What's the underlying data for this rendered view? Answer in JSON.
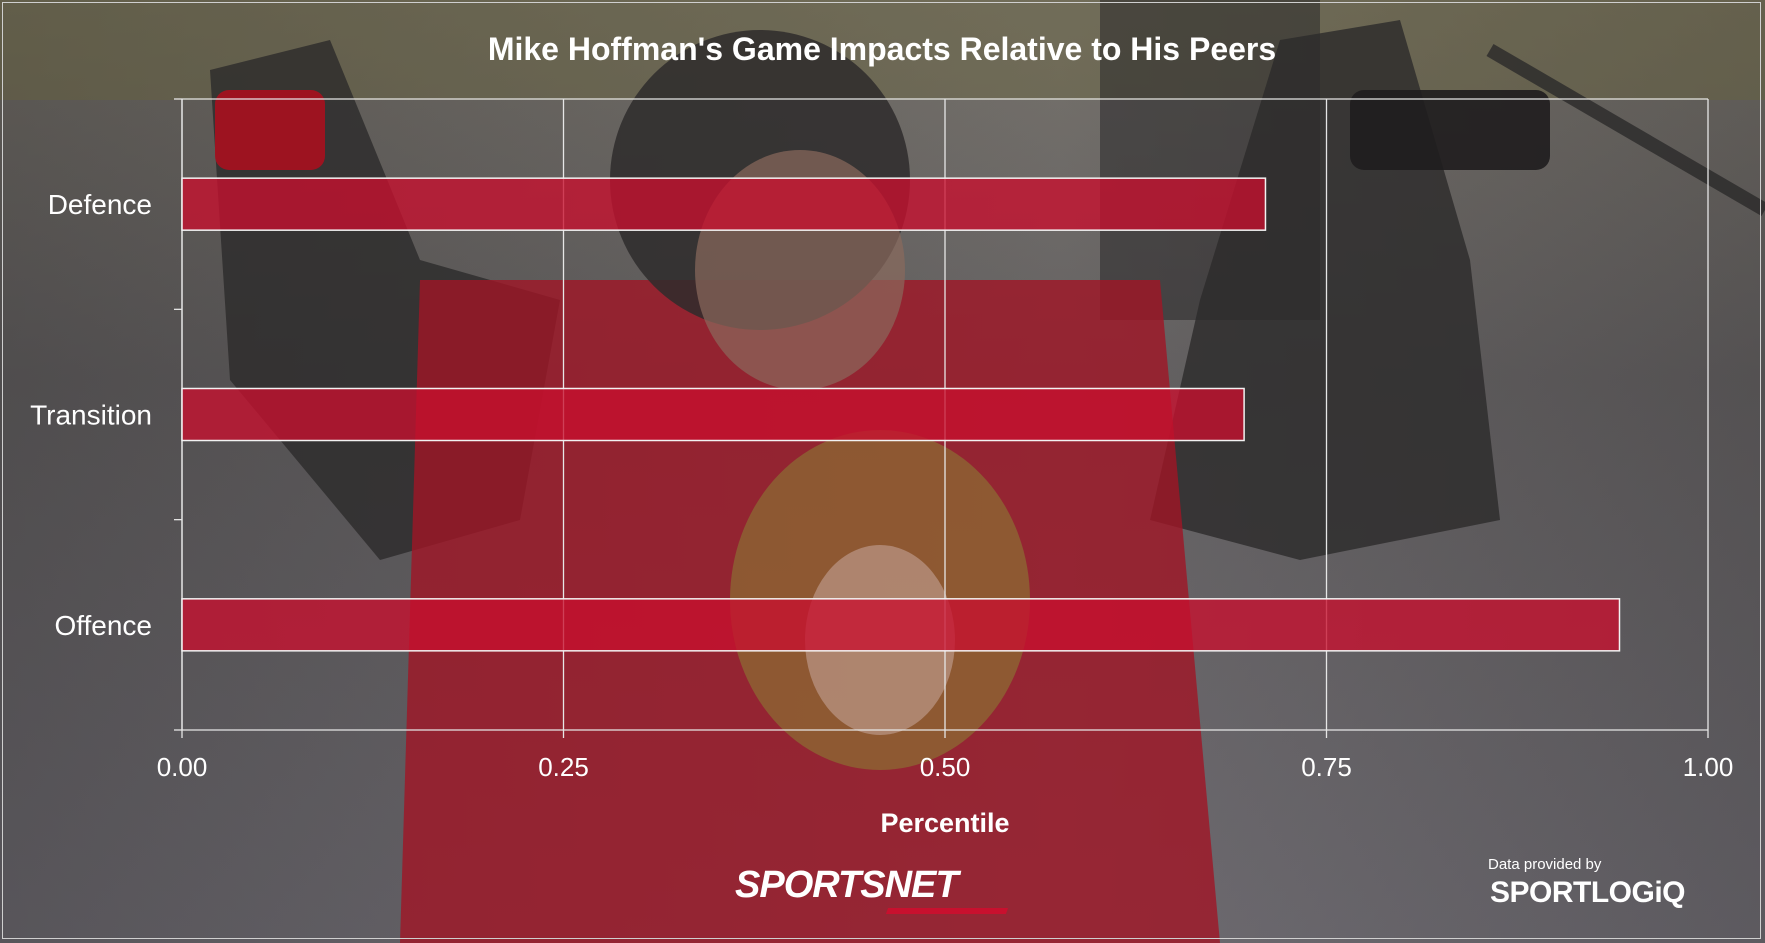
{
  "chart_data": {
    "type": "bar",
    "orientation": "horizontal",
    "title": "Mike Hoffman's Game Impacts Relative to His Peers",
    "categories": [
      "Defence",
      "Transition",
      "Offence"
    ],
    "values": [
      0.71,
      0.696,
      0.942
    ],
    "xlabel": "Percentile",
    "ylabel": "",
    "xlim": [
      0,
      1
    ],
    "xticks": [
      "0.00",
      "0.25",
      "0.50",
      "0.75",
      "1.00"
    ],
    "grid": true,
    "bar_color": "#c8102e"
  },
  "branding": {
    "broadcaster": "SPORTSNET",
    "provided_by": "Data provided by",
    "data_partner": "SPORTLOGiQ"
  }
}
